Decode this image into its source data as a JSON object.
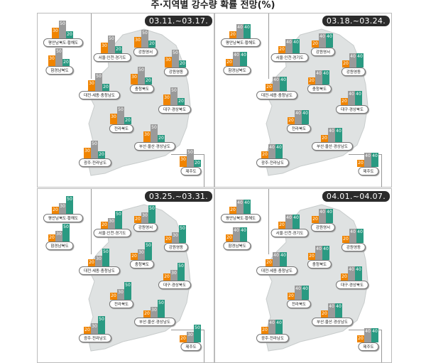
{
  "title": "주·지역별 강수량 확률 전망(%)",
  "colors": {
    "below": "#f08400",
    "normal": "#9a9a9a",
    "above": "#2a9a82",
    "map": "#dfe2e2"
  },
  "regions": [
    "평안남북도·황해도",
    "함경남북도",
    "서울·인천·경기도",
    "강원영서",
    "강원영동",
    "대전·세종·충청남도",
    "충청북도",
    "대구·경상북도",
    "전라북도",
    "부산·울산·경상남도",
    "광주·전라남도",
    "제주도"
  ],
  "chart_data": [
    {
      "type": "bar",
      "period": "03.11.~03.17.",
      "values_per_region": [
        30,
        50,
        20
      ]
    },
    {
      "type": "bar",
      "period": "03.18.~03.24.",
      "values_per_region": [
        20,
        40,
        40
      ]
    },
    {
      "type": "bar",
      "period": "03.25.~03.31.",
      "values_per_region": [
        20,
        30,
        50
      ]
    },
    {
      "type": "bar",
      "period": "04.01.~04.07.",
      "values_per_region": [
        20,
        40,
        40
      ]
    }
  ]
}
